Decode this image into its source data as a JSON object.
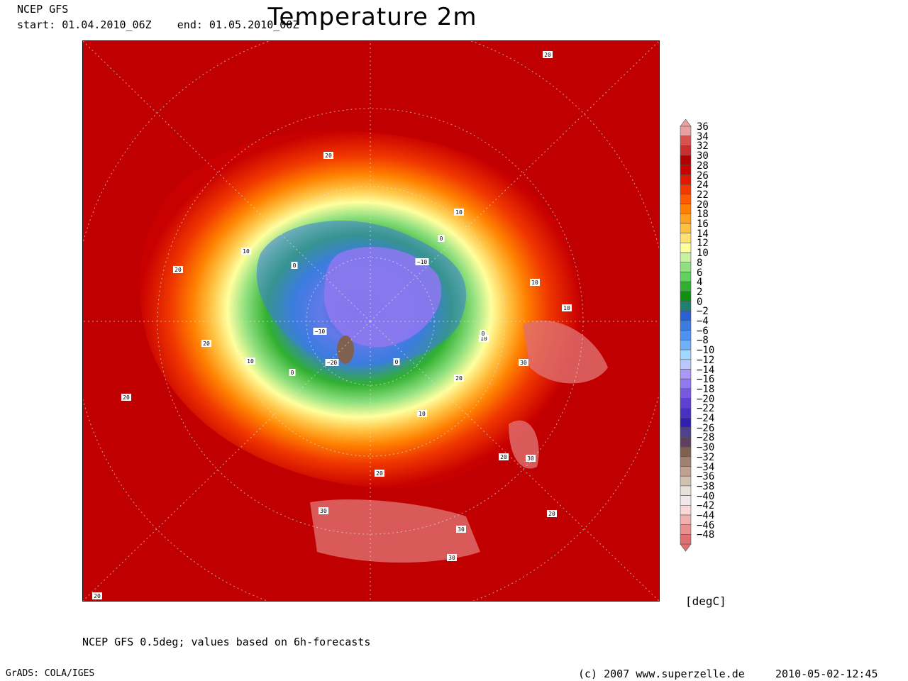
{
  "header": {
    "model": "NCEP GFS",
    "period": "start: 01.04.2010_06Z    end: 01.05.2010_00Z",
    "title": "Temperature 2m"
  },
  "legend": {
    "unit": "[degC]",
    "levels": [
      36,
      34,
      32,
      30,
      28,
      26,
      24,
      22,
      20,
      18,
      16,
      14,
      12,
      10,
      8,
      6,
      4,
      2,
      0,
      -2,
      -4,
      -6,
      -8,
      -10,
      -12,
      -14,
      -16,
      -18,
      -20,
      -22,
      -24,
      -26,
      -28,
      -30,
      -32,
      -34,
      -36,
      -38,
      -40,
      -42,
      -44,
      -46,
      -48
    ],
    "colors": [
      "#e8a0a0",
      "#d95050",
      "#c83030",
      "#b00000",
      "#c80000",
      "#e01800",
      "#f03800",
      "#ff5a00",
      "#ff8000",
      "#ffa020",
      "#ffc040",
      "#ffe070",
      "#ffff9e",
      "#c8f0a0",
      "#90e080",
      "#60d060",
      "#30b030",
      "#109010",
      "#208070",
      "#2a60d0",
      "#3c7ce0",
      "#5090f0",
      "#70b0f8",
      "#a0d8ff",
      "#b8c8ff",
      "#a898f8",
      "#9078f0",
      "#7858e0",
      "#6040d0",
      "#4830c0",
      "#3020b0",
      "#504090",
      "#604060",
      "#806050",
      "#a08070",
      "#c0a090",
      "#d0c0b0",
      "#e8e0d8",
      "#f0e8e8",
      "#f8d8d8",
      "#f0b0b0",
      "#e89090",
      "#e07070"
    ]
  },
  "contour_labels": [
    "20",
    "20",
    "20",
    "20",
    "20",
    "20",
    "20",
    "20",
    "20",
    "20",
    "10",
    "10",
    "10",
    "10",
    "10",
    "10",
    "10",
    "0",
    "0",
    "0",
    "0",
    "0",
    "-10",
    "-10",
    "-20",
    "30",
    "30",
    "30",
    "30",
    "30"
  ],
  "footer": {
    "source_note": "NCEP GFS 0.5deg; values based on 6h-forecasts",
    "software": "GrADS: COLA/IGES",
    "copyright": "(c) 2007 www.superzelle.de",
    "timestamp": "2010-05-02-12:45"
  }
}
